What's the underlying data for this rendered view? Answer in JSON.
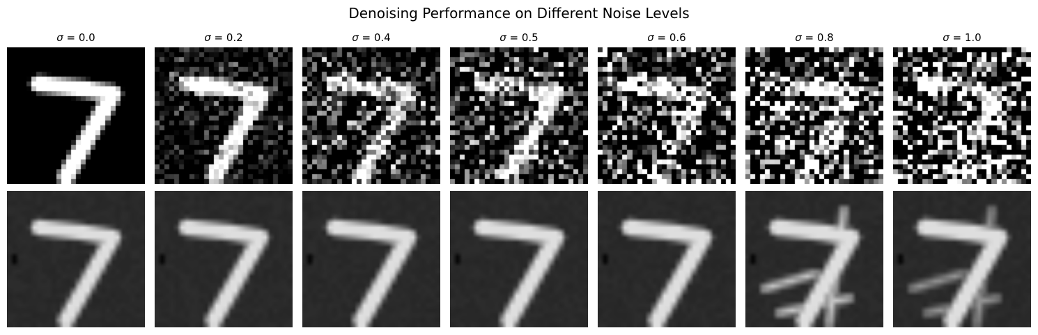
{
  "figure": {
    "title": "Denoising Performance on Different Noise Levels"
  },
  "columns": [
    {
      "symbol": "σ",
      "label_suffix": " = 0.0",
      "sigma": 0.0
    },
    {
      "symbol": "σ",
      "label_suffix": " = 0.2",
      "sigma": 0.2
    },
    {
      "symbol": "σ",
      "label_suffix": " = 0.4",
      "sigma": 0.4
    },
    {
      "symbol": "σ",
      "label_suffix": " = 0.5",
      "sigma": 0.5
    },
    {
      "symbol": "σ",
      "label_suffix": " = 0.6",
      "sigma": 0.6
    },
    {
      "symbol": "σ",
      "label_suffix": " = 0.8",
      "sigma": 0.8
    },
    {
      "symbol": "σ",
      "label_suffix": " = 1.0",
      "sigma": 1.0
    }
  ],
  "rows": [
    {
      "role": "noisy-input"
    },
    {
      "role": "denoised-output"
    }
  ],
  "colors": {
    "background": "#ffffff",
    "image_black": "#000000",
    "image_white": "#ffffff",
    "denoised_background": "#262626"
  }
}
